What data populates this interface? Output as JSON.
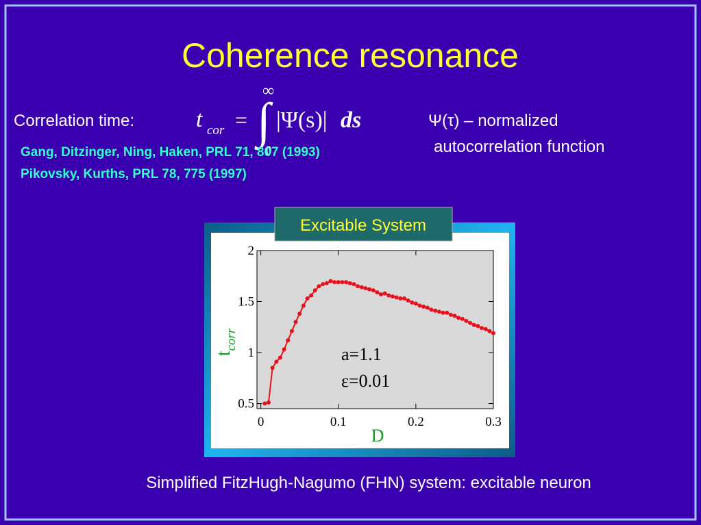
{
  "slide": {
    "title": "Coherence resonance",
    "label": "Correlation time:",
    "formula": {
      "lhs": "t",
      "lhs_sub": "cor",
      "equals": "=",
      "integral": "∫",
      "upper": "∞",
      "lower": "0",
      "integrand": "|Ψ(s)|",
      "differential": "ds"
    },
    "note_line1": "Ψ(τ) – normalized",
    "note_line2": "autocorrelation function",
    "references": [
      "Gang, Ditzinger, Ning, Haken, PRL 71, 807 (1993)",
      "Pikovsky, Kurths, PRL 78, 775 (1997)"
    ],
    "box_title": "Excitable System",
    "caption": "Simplified FitzHugh-Nagumo (FHN) system: excitable neuron"
  },
  "chart_data": {
    "type": "line",
    "xlabel": "D",
    "ylabel": "t",
    "ylabel_subscript": "corr",
    "annotations": [
      "a=1.1",
      "ε=0.01"
    ],
    "xlim": [
      -0.005,
      0.3
    ],
    "ylim": [
      0.45,
      2
    ],
    "xticks": [
      0,
      0.1,
      0.2,
      0.3
    ],
    "yticks": [
      0.5,
      1,
      1.5,
      2
    ],
    "x": [
      0.005,
      0.01,
      0.015,
      0.02,
      0.025,
      0.03,
      0.035,
      0.04,
      0.045,
      0.05,
      0.055,
      0.06,
      0.065,
      0.07,
      0.075,
      0.08,
      0.085,
      0.09,
      0.095,
      0.1,
      0.105,
      0.11,
      0.115,
      0.12,
      0.125,
      0.13,
      0.135,
      0.14,
      0.145,
      0.15,
      0.155,
      0.16,
      0.165,
      0.17,
      0.175,
      0.18,
      0.185,
      0.19,
      0.195,
      0.2,
      0.205,
      0.21,
      0.215,
      0.22,
      0.225,
      0.23,
      0.235,
      0.24,
      0.245,
      0.25,
      0.255,
      0.26,
      0.265,
      0.27,
      0.275,
      0.28,
      0.285,
      0.29,
      0.295,
      0.3
    ],
    "series": [
      {
        "color": "#e8101a",
        "values": [
          0.5,
          0.51,
          0.85,
          0.91,
          0.95,
          1.03,
          1.12,
          1.21,
          1.3,
          1.38,
          1.46,
          1.53,
          1.56,
          1.61,
          1.65,
          1.67,
          1.68,
          1.7,
          1.69,
          1.69,
          1.69,
          1.69,
          1.68,
          1.67,
          1.65,
          1.64,
          1.63,
          1.62,
          1.61,
          1.59,
          1.57,
          1.58,
          1.56,
          1.55,
          1.54,
          1.53,
          1.53,
          1.51,
          1.49,
          1.48,
          1.46,
          1.45,
          1.44,
          1.42,
          1.41,
          1.4,
          1.39,
          1.39,
          1.37,
          1.36,
          1.34,
          1.33,
          1.31,
          1.29,
          1.27,
          1.26,
          1.24,
          1.23,
          1.21,
          1.19
        ]
      }
    ]
  }
}
